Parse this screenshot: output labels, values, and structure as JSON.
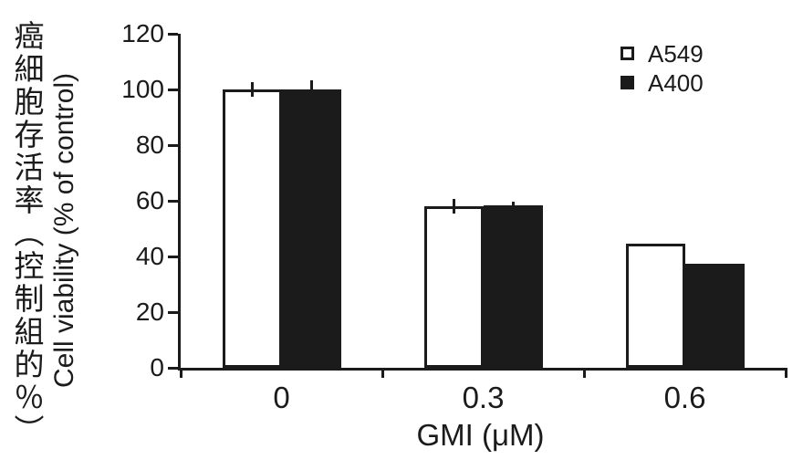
{
  "colors": {
    "ink": "#1b1b1b",
    "background": "#ffffff",
    "bar_open_fill": "#ffffff",
    "bar_solid_fill": "#1b1b1b"
  },
  "y_axis": {
    "label_zh": "癌細胞存活率（控制組的％）",
    "label_en": "Cell viability (% of control)"
  },
  "chart_data": {
    "type": "bar",
    "title": "",
    "xlabel": "GMI (μM)",
    "ylabel": "Cell viability (% of control)",
    "ylabel_secondary": "癌細胞存活率（控制組的％）",
    "categories": [
      "0",
      "0.3",
      "0.6"
    ],
    "series": [
      {
        "name": "A549",
        "fill": "#ffffff",
        "values": [
          100,
          58,
          44.5
        ],
        "errors_upper": [
          2.5,
          2.5,
          0
        ]
      },
      {
        "name": "A400",
        "fill": "#1b1b1b",
        "values": [
          100,
          58.5,
          37.5
        ],
        "errors_upper": [
          3.3,
          1.3,
          0
        ]
      }
    ],
    "ylim": [
      0,
      120
    ],
    "yticks": [
      0,
      20,
      40,
      60,
      80,
      100,
      120
    ],
    "grid": false,
    "legend_position": "top-right",
    "error_bars": true
  }
}
